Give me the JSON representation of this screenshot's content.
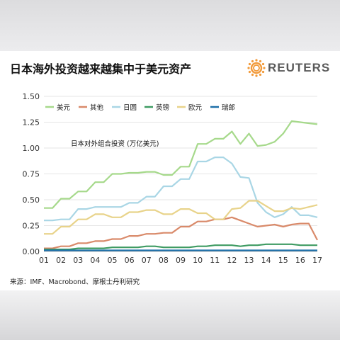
{
  "header": {
    "title": "日本海外投资越来越集中于美元资产",
    "brand": "REUTERS"
  },
  "footer": {
    "source": "来源：IMF、Macrobond、摩根士丹利研究"
  },
  "colors": {
    "usd": "#a6d98b",
    "other": "#d98a6a",
    "jpy": "#a9d6e5",
    "gbp": "#3e9b62",
    "eur": "#e8d38a",
    "chf": "#1d6fa8",
    "brand_orange": "#f29a3a"
  },
  "chart_data": {
    "type": "line",
    "annotation": "日本对外组合投资 (万亿美元)",
    "x": [
      "01",
      "01.5",
      "02",
      "02.5",
      "03",
      "03.5",
      "04",
      "04.5",
      "05",
      "05.5",
      "06",
      "06.5",
      "07",
      "07.5",
      "08",
      "08.5",
      "09",
      "09.5",
      "10",
      "10.5",
      "11",
      "11.5",
      "12",
      "12.5",
      "13",
      "13.5",
      "14",
      "14.5",
      "15",
      "15.5",
      "16",
      "16.5",
      "17"
    ],
    "xticks": [
      "01",
      "02",
      "03",
      "04",
      "05",
      "06",
      "07",
      "08",
      "09",
      "10",
      "11",
      "12",
      "13",
      "14",
      "15",
      "16",
      "17"
    ],
    "ylim": [
      0,
      1.5
    ],
    "yticks": [
      "0.00",
      "0.25",
      "0.50",
      "0.75",
      "1.00",
      "1.25",
      "1.50"
    ],
    "grid": true,
    "legend_position": "top-left",
    "series": [
      {
        "name": "美元",
        "color_key": "usd",
        "values": [
          0.42,
          0.42,
          0.51,
          0.51,
          0.58,
          0.58,
          0.67,
          0.67,
          0.75,
          0.75,
          0.76,
          0.76,
          0.77,
          0.77,
          0.74,
          0.74,
          0.82,
          0.82,
          1.04,
          1.04,
          1.09,
          1.09,
          1.16,
          1.04,
          1.14,
          1.02,
          1.03,
          1.06,
          1.14,
          1.26,
          1.25,
          1.24,
          1.23
        ]
      },
      {
        "name": "其他",
        "color_key": "other",
        "values": [
          0.03,
          0.03,
          0.05,
          0.05,
          0.08,
          0.08,
          0.1,
          0.1,
          0.12,
          0.12,
          0.15,
          0.15,
          0.17,
          0.17,
          0.18,
          0.18,
          0.24,
          0.24,
          0.29,
          0.29,
          0.31,
          0.31,
          0.33,
          0.3,
          0.27,
          0.24,
          0.25,
          0.26,
          0.24,
          0.26,
          0.27,
          0.27,
          0.11
        ]
      },
      {
        "name": "日圆",
        "color_key": "jpy",
        "values": [
          0.3,
          0.3,
          0.31,
          0.31,
          0.41,
          0.41,
          0.43,
          0.43,
          0.43,
          0.43,
          0.47,
          0.47,
          0.53,
          0.53,
          0.63,
          0.63,
          0.7,
          0.7,
          0.87,
          0.87,
          0.91,
          0.91,
          0.85,
          0.72,
          0.71,
          0.47,
          0.38,
          0.33,
          0.36,
          0.43,
          0.35,
          0.35,
          0.33
        ]
      },
      {
        "name": "英镑",
        "color_key": "gbp",
        "values": [
          0.02,
          0.02,
          0.02,
          0.02,
          0.03,
          0.03,
          0.03,
          0.03,
          0.04,
          0.04,
          0.04,
          0.04,
          0.05,
          0.05,
          0.04,
          0.04,
          0.04,
          0.04,
          0.05,
          0.05,
          0.06,
          0.06,
          0.06,
          0.05,
          0.06,
          0.06,
          0.07,
          0.07,
          0.07,
          0.07,
          0.06,
          0.06,
          0.06
        ]
      },
      {
        "name": "欧元",
        "color_key": "eur",
        "values": [
          0.17,
          0.17,
          0.24,
          0.24,
          0.31,
          0.31,
          0.36,
          0.36,
          0.33,
          0.33,
          0.38,
          0.38,
          0.4,
          0.4,
          0.36,
          0.36,
          0.41,
          0.41,
          0.37,
          0.37,
          0.31,
          0.31,
          0.41,
          0.42,
          0.49,
          0.49,
          0.44,
          0.39,
          0.39,
          0.42,
          0.41,
          0.43,
          0.45
        ]
      },
      {
        "name": "瑞郎",
        "color_key": "chf",
        "values": [
          0.01,
          0.01,
          0.01,
          0.01,
          0.01,
          0.01,
          0.01,
          0.01,
          0.01,
          0.01,
          0.01,
          0.01,
          0.01,
          0.01,
          0.01,
          0.01,
          0.01,
          0.01,
          0.01,
          0.01,
          0.01,
          0.01,
          0.01,
          0.01,
          0.01,
          0.01,
          0.01,
          0.01,
          0.01,
          0.01,
          0.01,
          0.01,
          0.01
        ]
      }
    ]
  }
}
